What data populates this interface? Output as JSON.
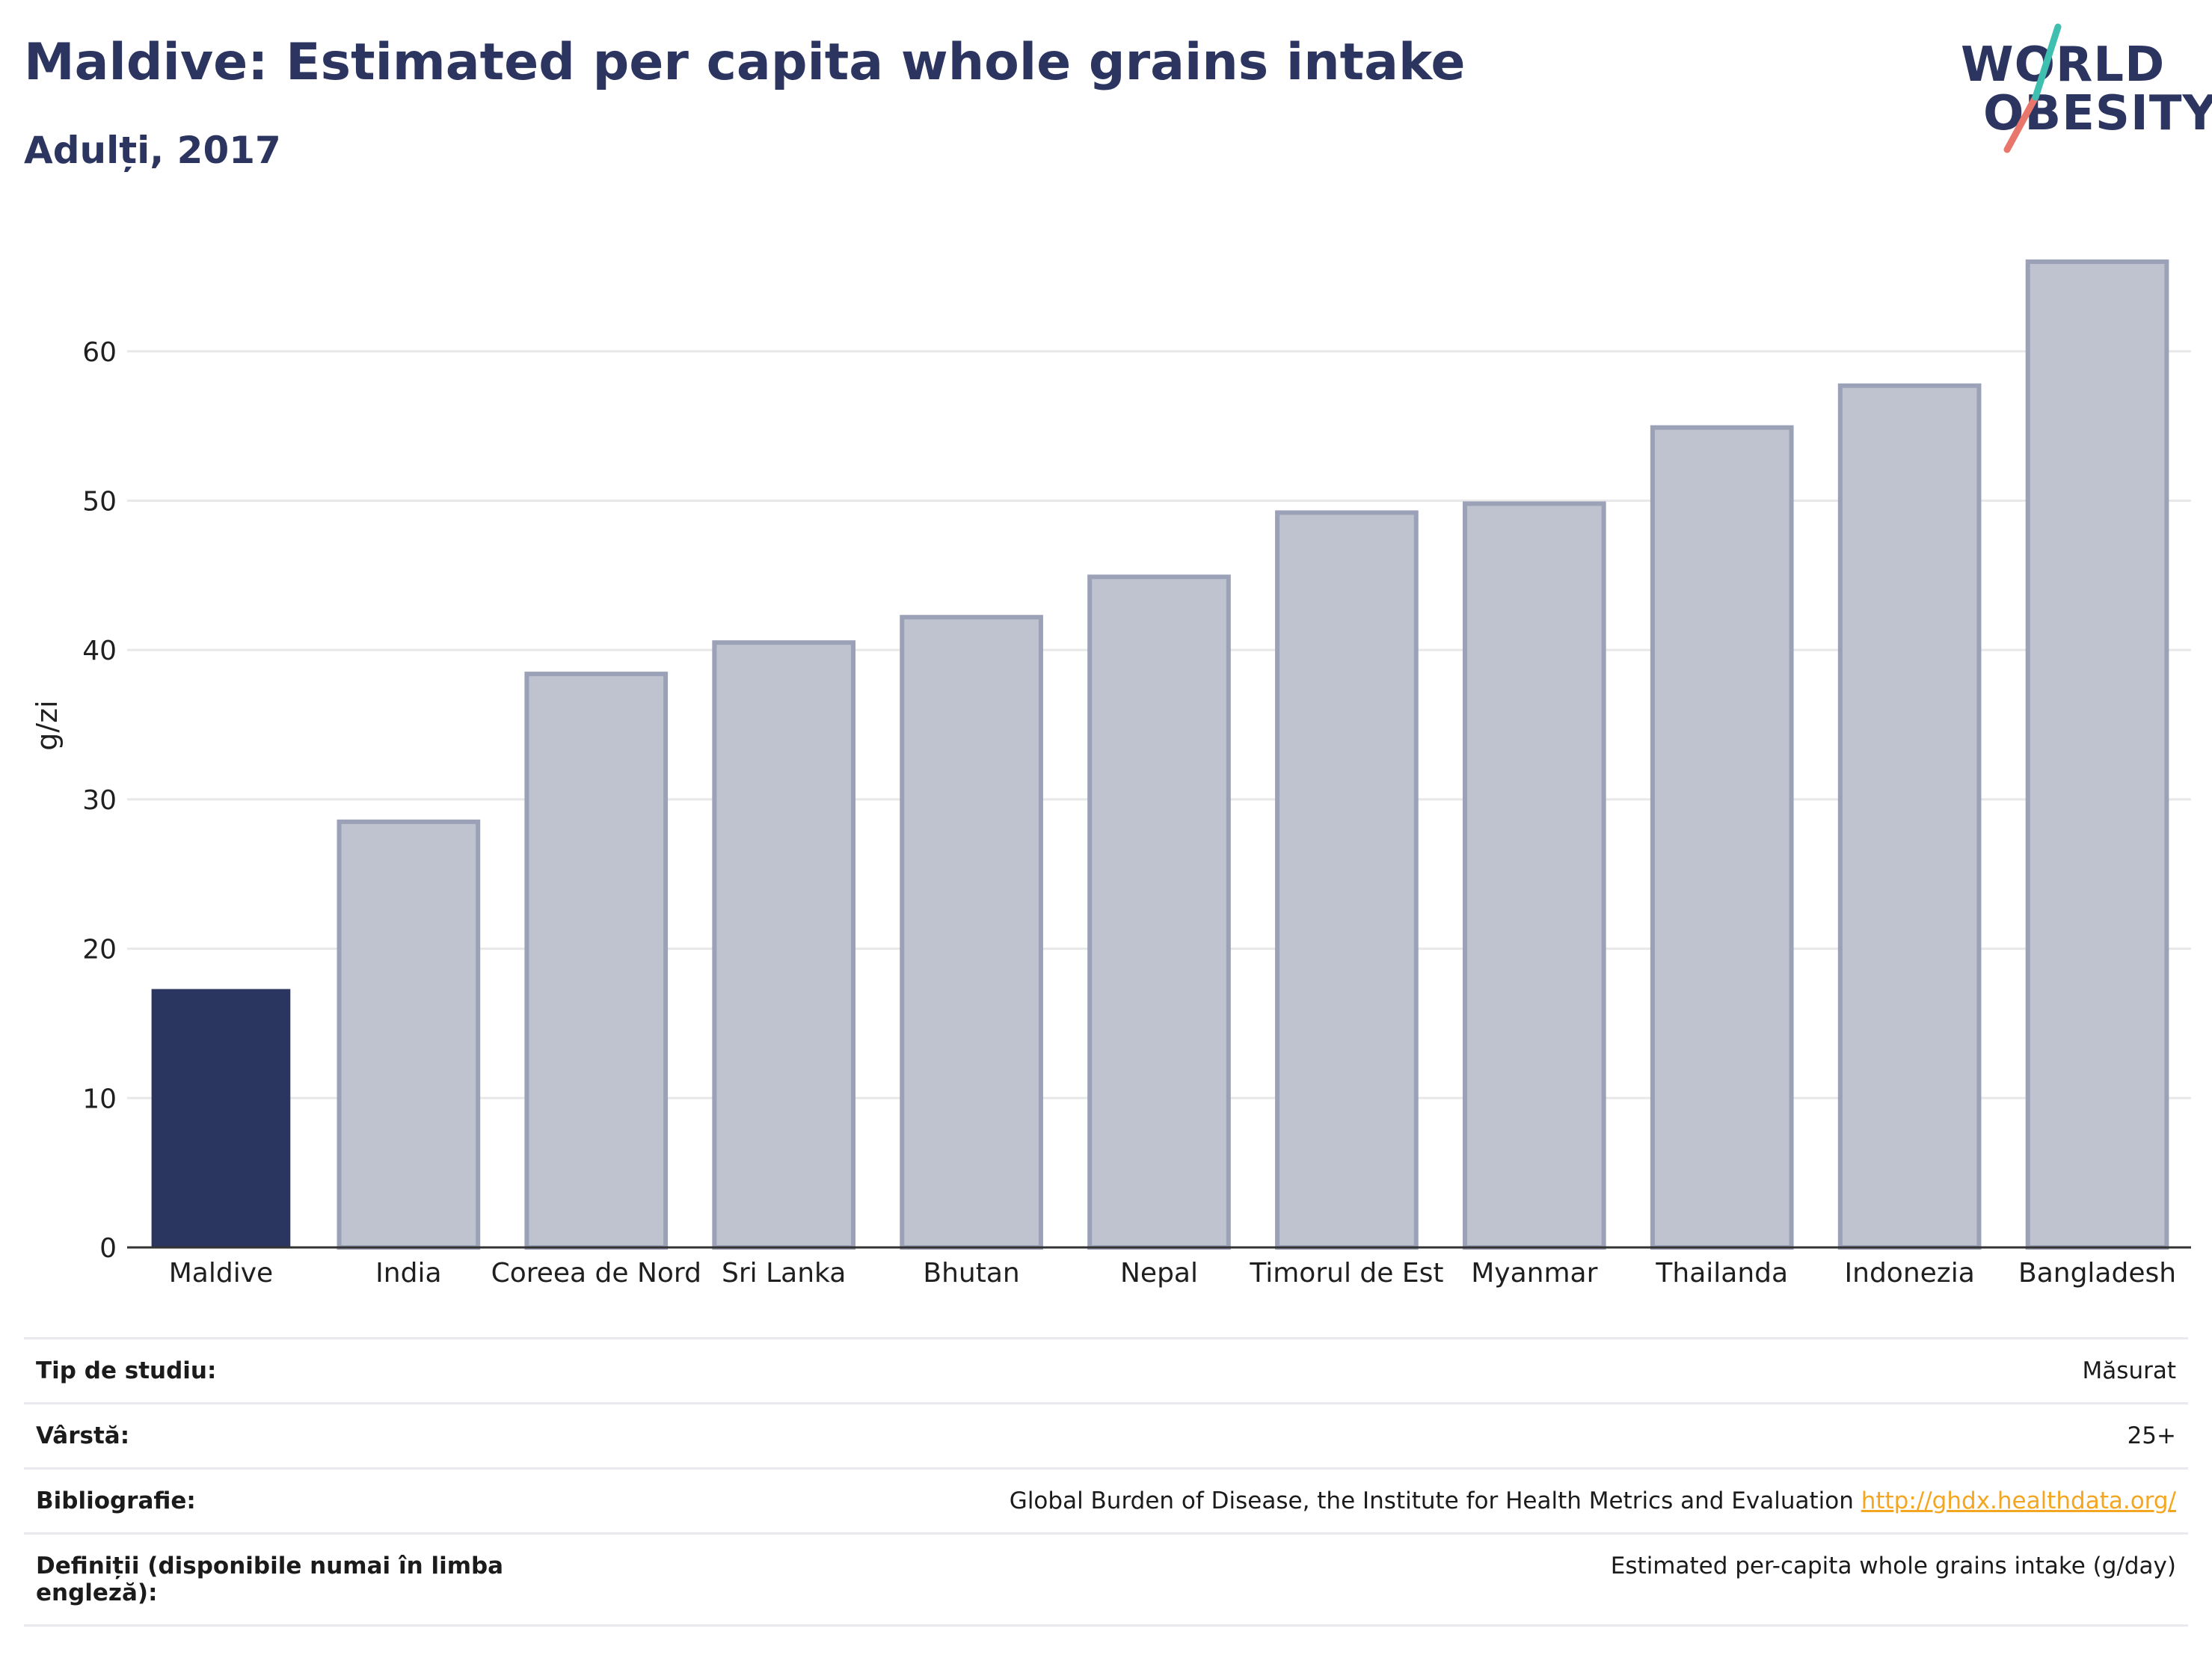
{
  "header": {
    "title": "Maldive: Estimated per capita whole grains intake",
    "subtitle": "Adulți, 2017"
  },
  "logo": {
    "line1": "WORLD",
    "line2": "OBESITY"
  },
  "chart_data": {
    "type": "bar",
    "categories": [
      "Maldive",
      "India",
      "Coreea de Nord",
      "Sri Lanka",
      "Bhutan",
      "Nepal",
      "Timorul de Est",
      "Myanmar",
      "Thailanda",
      "Indonezia",
      "Bangladesh"
    ],
    "values": [
      17.3,
      28.5,
      38.4,
      40.5,
      42.2,
      44.9,
      49.2,
      49.8,
      54.9,
      57.7,
      66.0
    ],
    "highlight": "Maldive",
    "ylabel": "g/zi",
    "ylim": [
      0,
      68
    ],
    "yticks": [
      0,
      10,
      20,
      30,
      40,
      50,
      60
    ],
    "grid": true,
    "colors": {
      "highlight": "#2a365f",
      "other_fill": "#bfc3cf",
      "other_stroke": "#9ba1b7",
      "grid": "#e8e8e8",
      "axis": "#333333"
    }
  },
  "info": {
    "rows": [
      {
        "label": "Tip de studiu:",
        "value": "Măsurat"
      },
      {
        "label": "Vârstă:",
        "value": "25+"
      },
      {
        "label": "Bibliografie:",
        "value": "Global Burden of Disease, the Institute for Health Metrics and Evaluation",
        "link": "http://ghdx.healthdata.org/"
      },
      {
        "label": "Definiții (disponibile numai în limba engleză):",
        "value": "Estimated per-capita whole grains intake (g/day)"
      }
    ]
  }
}
